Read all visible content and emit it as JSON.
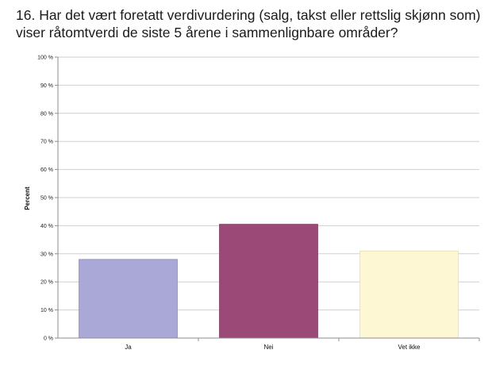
{
  "question_title": "16. Har det vært foretatt verdivurdering (salg, takst eller rettslig skjønn som) viser råtomtverdi de siste 5 årene i sammenlignbare områder?",
  "colors": {
    "gridline": "#cfcfcf",
    "axis": "#8c8c8c",
    "bar_ja": "#a9a8d6",
    "bar_nei": "#9b4977",
    "bar_vet_ikke": "#fdf7d4"
  },
  "chart_data": {
    "type": "bar",
    "title": "16. Har det vært foretatt verdivurdering (salg, takst eller rettslig skjønn som) viser råtomtverdi de siste 5 årene i sammenlignbare områder?",
    "xlabel": "",
    "ylabel": "Percent",
    "categories": [
      "Ja",
      "Nei",
      "Vet ikke"
    ],
    "values": [
      28,
      40.5,
      31
    ],
    "ylim": [
      0,
      100
    ],
    "yticks": [
      0,
      10,
      20,
      30,
      40,
      50,
      60,
      70,
      80,
      90,
      100
    ],
    "ytick_labels": [
      "0 %",
      "10 %",
      "20 %",
      "30 %",
      "40 %",
      "50 %",
      "60 %",
      "70 %",
      "80 %",
      "90 %",
      "100 %"
    ],
    "grid": true,
    "legend": false
  }
}
